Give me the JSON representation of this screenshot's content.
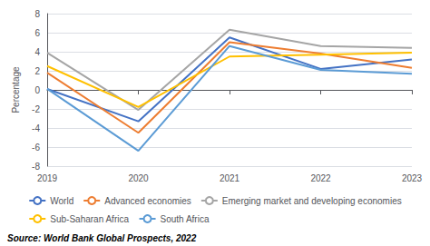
{
  "chart_data": {
    "type": "line",
    "categories": [
      "2019",
      "2020",
      "2021",
      "2022",
      "2023"
    ],
    "series": [
      {
        "name": "World",
        "color": "#4472c4",
        "values": [
          0.1,
          -3.3,
          5.5,
          2.2,
          3.2
        ]
      },
      {
        "name": "Advanced economies",
        "color": "#ed7d31",
        "values": [
          1.8,
          -4.5,
          5.0,
          3.8,
          2.3
        ]
      },
      {
        "name": "Emerging market and developing economies",
        "color": "#a5a5a5",
        "values": [
          3.9,
          -2.1,
          6.3,
          4.6,
          4.4
        ]
      },
      {
        "name": "Sub-Saharan Africa",
        "color": "#ffc000",
        "values": [
          2.5,
          -1.8,
          3.5,
          3.7,
          3.9
        ]
      },
      {
        "name": "South Africa",
        "color": "#5b9bd5",
        "values": [
          0.1,
          -6.4,
          4.6,
          2.1,
          1.7
        ]
      }
    ],
    "ylabel": "Percentage",
    "ylim": [
      -8,
      8
    ],
    "yticks": [
      -8,
      -6,
      -4,
      -2,
      0,
      2,
      4,
      6,
      8
    ],
    "grid": true,
    "legend": "bottom",
    "annotation": "Source: World Bank Global Prospects, 2022"
  }
}
